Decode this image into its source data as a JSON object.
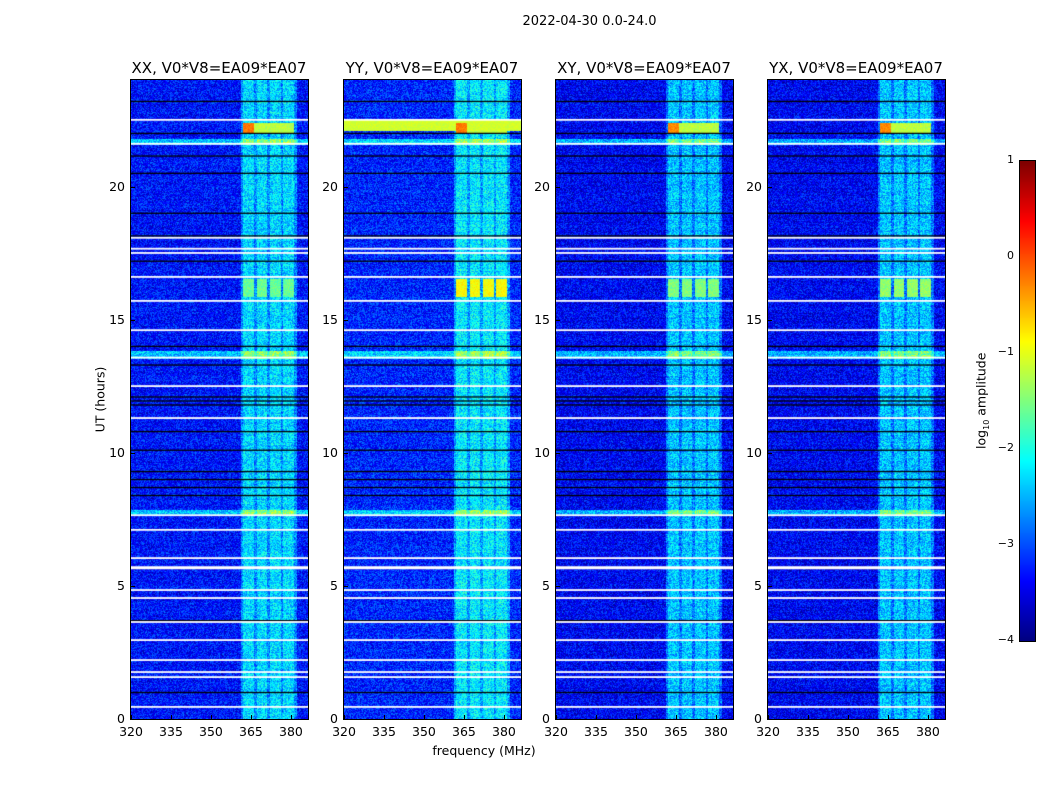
{
  "chart_data": {
    "type": "heatmap",
    "suptitle": "2022-04-30 0.0-24.0",
    "xlabel": "frequency (MHz)",
    "ylabel": "UT (hours)",
    "xlim": [
      320,
      386.4
    ],
    "ylim": [
      0,
      24
    ],
    "xticks": [
      "320",
      "335",
      "350",
      "365",
      "380"
    ],
    "xtick_values": [
      320,
      335,
      350,
      365,
      380
    ],
    "yticks": [
      "0",
      "5",
      "10",
      "15",
      "20"
    ],
    "ytick_values": [
      0,
      5,
      10,
      15,
      20
    ],
    "panels": [
      {
        "title": "XX, V0*V8=EA09*EA07",
        "base": -3.3,
        "event16": -1.6,
        "event22": -0.2
      },
      {
        "title": "YY, V0*V8=EA09*EA07",
        "base": -3.2,
        "event16": -0.9,
        "event22": -0.2
      },
      {
        "title": "XY, V0*V8=EA09*EA07",
        "base": -3.4,
        "event16": -1.5,
        "event22": -0.3
      },
      {
        "title": "YX, V0*V8=EA09*EA07",
        "base": -3.4,
        "event16": -1.4,
        "event22": -0.3
      }
    ],
    "rfi_bands_mhz": [
      [
        362,
        366
      ],
      [
        367,
        371
      ],
      [
        372,
        376
      ],
      [
        377,
        381
      ]
    ],
    "flagged_white_ut": [
      22.5,
      21.6,
      18.07,
      17.66,
      17.5,
      16.6,
      15.7,
      14.6,
      13.57,
      12.5,
      11.3,
      7.65,
      7.1,
      6.04,
      5.7,
      4.84,
      4.54,
      3.64,
      2.96,
      2.21,
      1.76,
      1.57,
      0.45
    ],
    "flagged_black_ut": [
      23.2,
      22.0,
      21.15,
      20.5,
      19.0,
      18.15,
      17.2,
      14.0,
      13.3,
      12.1,
      11.95,
      11.8,
      10.8,
      10.1,
      9.3,
      9.0,
      8.7,
      8.4,
      3.7,
      1.0
    ],
    "colorbar": {
      "label": "log10 amplitude",
      "label_main": "log",
      "label_sub": "10",
      "label_rest": " amplitude",
      "range": [
        -4,
        1
      ],
      "ticks": [
        "1",
        "0",
        "−1",
        "−2",
        "−3",
        "−4"
      ],
      "tick_values": [
        1,
        0,
        -1,
        -2,
        -3,
        -4
      ]
    }
  }
}
